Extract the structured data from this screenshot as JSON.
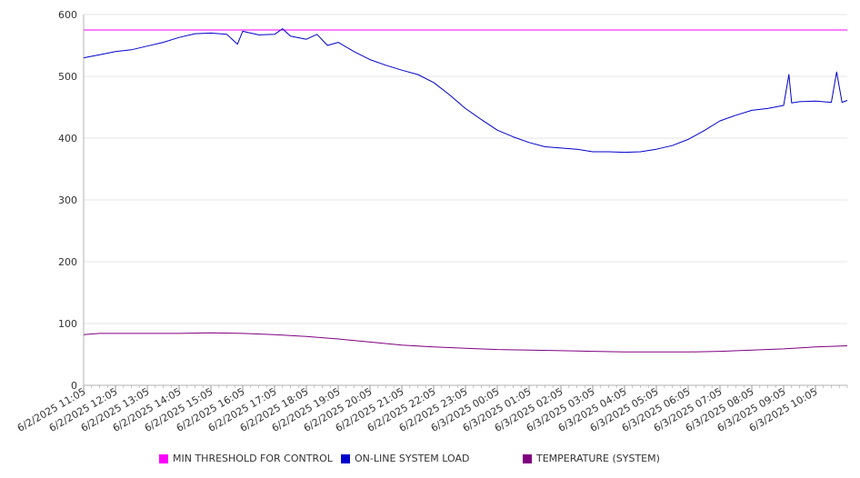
{
  "chart_data": {
    "type": "line",
    "title": "",
    "xlabel": "",
    "ylabel": "",
    "ylim": [
      0,
      600
    ],
    "yticks": [
      0,
      100,
      200,
      300,
      400,
      500,
      600
    ],
    "x_start": "6/2/2025 11:05",
    "x_end": "6/3/2025 11:05",
    "x_tick_labels": [
      "6/2/2025 11:05",
      "6/2/2025 12:05",
      "6/2/2025 13:05",
      "6/2/2025 14:05",
      "6/2/2025 15:05",
      "6/2/2025 16:05",
      "6/2/2025 17:05",
      "6/2/2025 18:05",
      "6/2/2025 19:05",
      "6/2/2025 20:05",
      "6/2/2025 21:05",
      "6/2/2025 22:05",
      "6/2/2025 23:05",
      "6/3/2025 00:05",
      "6/3/2025 01:05",
      "6/3/2025 02:05",
      "6/3/2025 03:05",
      "6/3/2025 04:05",
      "6/3/2025 05:05",
      "6/3/2025 06:05",
      "6/3/2025 07:05",
      "6/3/2025 08:05",
      "6/3/2025 09:05",
      "6/3/2025 10:05"
    ],
    "grid": "horizontal",
    "legend_position": "bottom",
    "series": [
      {
        "name": "MIN THRESHOLD FOR CONTROL",
        "color": "#ff00ff",
        "points": [
          [
            "6/2/2025 11:05",
            575
          ],
          [
            "6/3/2025 11:05",
            575
          ]
        ]
      },
      {
        "name": "ON-LINE SYSTEM LOAD",
        "color": "#0000cc",
        "points": [
          [
            "6/2/2025 11:05",
            530
          ],
          [
            "6/2/2025 11:35",
            535
          ],
          [
            "6/2/2025 12:05",
            540
          ],
          [
            "6/2/2025 12:35",
            543
          ],
          [
            "6/2/2025 13:05",
            549
          ],
          [
            "6/2/2025 13:35",
            555
          ],
          [
            "6/2/2025 14:05",
            563
          ],
          [
            "6/2/2025 14:35",
            569
          ],
          [
            "6/2/2025 15:05",
            570
          ],
          [
            "6/2/2025 15:35",
            568
          ],
          [
            "6/2/2025 15:55",
            552
          ],
          [
            "6/2/2025 16:05",
            573
          ],
          [
            "6/2/2025 16:35",
            567
          ],
          [
            "6/2/2025 17:05",
            568
          ],
          [
            "6/2/2025 17:20",
            577
          ],
          [
            "6/2/2025 17:35",
            565
          ],
          [
            "6/2/2025 18:05",
            560
          ],
          [
            "6/2/2025 18:25",
            568
          ],
          [
            "6/2/2025 18:45",
            550
          ],
          [
            "6/2/2025 19:05",
            555
          ],
          [
            "6/2/2025 19:35",
            540
          ],
          [
            "6/2/2025 20:05",
            527
          ],
          [
            "6/2/2025 20:35",
            518
          ],
          [
            "6/2/2025 21:05",
            510
          ],
          [
            "6/2/2025 21:35",
            503
          ],
          [
            "6/2/2025 22:05",
            490
          ],
          [
            "6/2/2025 22:35",
            470
          ],
          [
            "6/2/2025 23:05",
            448
          ],
          [
            "6/2/2025 23:35",
            430
          ],
          [
            "6/3/2025 00:05",
            413
          ],
          [
            "6/3/2025 00:35",
            402
          ],
          [
            "6/3/2025 01:05",
            393
          ],
          [
            "6/3/2025 01:35",
            386
          ],
          [
            "6/3/2025 02:05",
            384
          ],
          [
            "6/3/2025 02:35",
            382
          ],
          [
            "6/3/2025 03:05",
            378
          ],
          [
            "6/3/2025 03:35",
            378
          ],
          [
            "6/3/2025 04:05",
            377
          ],
          [
            "6/3/2025 04:35",
            378
          ],
          [
            "6/3/2025 05:05",
            382
          ],
          [
            "6/3/2025 05:35",
            388
          ],
          [
            "6/3/2025 06:05",
            398
          ],
          [
            "6/3/2025 06:35",
            412
          ],
          [
            "6/3/2025 07:05",
            428
          ],
          [
            "6/3/2025 07:35",
            437
          ],
          [
            "6/3/2025 08:05",
            445
          ],
          [
            "6/3/2025 08:35",
            448
          ],
          [
            "6/3/2025 09:05",
            453
          ],
          [
            "6/3/2025 09:15",
            503
          ],
          [
            "6/3/2025 09:20",
            457
          ],
          [
            "6/3/2025 09:35",
            459
          ],
          [
            "6/3/2025 10:05",
            460
          ],
          [
            "6/3/2025 10:35",
            458
          ],
          [
            "6/3/2025 10:45",
            507
          ],
          [
            "6/3/2025 10:55",
            458
          ],
          [
            "6/3/2025 11:05",
            461
          ]
        ]
      },
      {
        "name": "TEMPERATURE (SYSTEM)",
        "color": "#800080",
        "points": [
          [
            "6/2/2025 11:05",
            82
          ],
          [
            "6/2/2025 11:35",
            84
          ],
          [
            "6/2/2025 13:05",
            84
          ],
          [
            "6/2/2025 14:05",
            84
          ],
          [
            "6/2/2025 15:05",
            85
          ],
          [
            "6/2/2025 16:05",
            84
          ],
          [
            "6/2/2025 17:05",
            82
          ],
          [
            "6/2/2025 18:05",
            79
          ],
          [
            "6/2/2025 19:05",
            75
          ],
          [
            "6/2/2025 20:05",
            70
          ],
          [
            "6/2/2025 21:05",
            65
          ],
          [
            "6/2/2025 22:05",
            62
          ],
          [
            "6/2/2025 23:05",
            60
          ],
          [
            "6/3/2025 00:05",
            58
          ],
          [
            "6/3/2025 01:05",
            57
          ],
          [
            "6/3/2025 02:05",
            56
          ],
          [
            "6/3/2025 03:05",
            55
          ],
          [
            "6/3/2025 04:05",
            54
          ],
          [
            "6/3/2025 05:05",
            54
          ],
          [
            "6/3/2025 06:05",
            54
          ],
          [
            "6/3/2025 07:05",
            55
          ],
          [
            "6/3/2025 08:05",
            57
          ],
          [
            "6/3/2025 09:05",
            59
          ],
          [
            "6/3/2025 10:05",
            62
          ],
          [
            "6/3/2025 11:05",
            64
          ]
        ]
      }
    ]
  }
}
